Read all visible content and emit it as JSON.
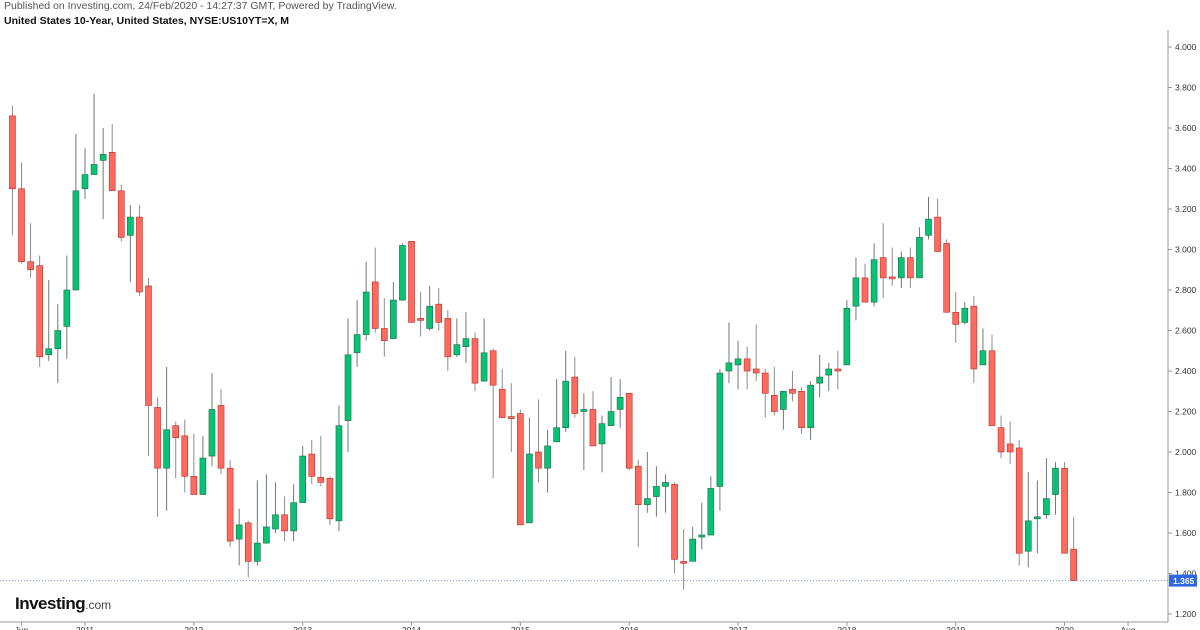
{
  "header": {
    "published": "Published on Investing.com, 24/Feb/2020 - 14:27:37 GMT, Powered by TradingView.",
    "title": "United States 10-Year, United States, NYSE:US10YT=X, M"
  },
  "logo": {
    "brand": "Investing",
    "suffix": ".com"
  },
  "chart_data": {
    "type": "candlestick",
    "title": "United States 10-Year, United States, NYSE:US10YT=X, M",
    "interval": "monthly",
    "x_tick_labels": [
      {
        "label": "Jun",
        "date": "2010-06"
      },
      {
        "label": "2011",
        "date": "2011-01"
      },
      {
        "label": "2012",
        "date": "2012-01"
      },
      {
        "label": "2013",
        "date": "2013-01"
      },
      {
        "label": "2014",
        "date": "2014-01"
      },
      {
        "label": "2015",
        "date": "2015-01"
      },
      {
        "label": "2016",
        "date": "2016-01"
      },
      {
        "label": "2017",
        "date": "2017-01"
      },
      {
        "label": "2018",
        "date": "2018-01"
      },
      {
        "label": "2019",
        "date": "2019-01"
      },
      {
        "label": "2020",
        "date": "2020-01"
      },
      {
        "label": "Aug",
        "date": "2020-08"
      }
    ],
    "y_tick_labels": [
      "1.200",
      "1.400",
      "1.600",
      "1.800",
      "2.000",
      "2.200",
      "2.400",
      "2.600",
      "2.800",
      "3.000",
      "3.200",
      "3.400",
      "3.600",
      "3.800",
      "4.000"
    ],
    "ylim": [
      1.2,
      4.0
    ],
    "y_axis_side": "right",
    "last_price": {
      "value": 1.365,
      "label": "1.365"
    },
    "colors": {
      "up": "#0ac276",
      "down": "#ff6a5f",
      "last_price": "#2f67e0",
      "wick": "#8a8f8c"
    },
    "columns": [
      "date",
      "open",
      "high",
      "low",
      "close"
    ],
    "rows": [
      [
        "2010-05",
        3.66,
        3.71,
        3.07,
        3.3
      ],
      [
        "2010-06",
        3.3,
        3.43,
        2.93,
        2.94
      ],
      [
        "2010-07",
        2.94,
        3.13,
        2.86,
        2.9
      ],
      [
        "2010-08",
        2.92,
        2.97,
        2.42,
        2.47
      ],
      [
        "2010-09",
        2.48,
        2.85,
        2.45,
        2.51
      ],
      [
        "2010-10",
        2.51,
        2.73,
        2.34,
        2.6
      ],
      [
        "2010-11",
        2.62,
        2.97,
        2.46,
        2.8
      ],
      [
        "2010-12",
        2.8,
        3.57,
        2.8,
        3.29
      ],
      [
        "2011-01",
        3.3,
        3.5,
        3.25,
        3.37
      ],
      [
        "2011-02",
        3.37,
        3.77,
        3.37,
        3.42
      ],
      [
        "2011-03",
        3.44,
        3.6,
        3.15,
        3.47
      ],
      [
        "2011-04",
        3.48,
        3.62,
        3.29,
        3.29
      ],
      [
        "2011-05",
        3.29,
        3.32,
        3.04,
        3.06
      ],
      [
        "2011-06",
        3.07,
        3.22,
        2.84,
        3.16
      ],
      [
        "2011-07",
        3.16,
        3.22,
        2.77,
        2.79
      ],
      [
        "2011-08",
        2.82,
        2.86,
        1.98,
        2.23
      ],
      [
        "2011-09",
        2.22,
        2.27,
        1.68,
        1.92
      ],
      [
        "2011-10",
        1.92,
        2.42,
        1.71,
        2.11
      ],
      [
        "2011-11",
        2.13,
        2.15,
        1.87,
        2.07
      ],
      [
        "2011-12",
        2.08,
        2.16,
        1.8,
        1.88
      ],
      [
        "2012-01",
        1.88,
        2.09,
        1.79,
        1.79
      ],
      [
        "2012-02",
        1.79,
        2.08,
        1.79,
        1.97
      ],
      [
        "2012-03",
        1.98,
        2.39,
        1.93,
        2.21
      ],
      [
        "2012-04",
        2.23,
        2.31,
        1.89,
        1.92
      ],
      [
        "2012-05",
        1.92,
        1.96,
        1.53,
        1.56
      ],
      [
        "2012-06",
        1.57,
        1.72,
        1.44,
        1.64
      ],
      [
        "2012-07",
        1.65,
        1.66,
        1.38,
        1.46
      ],
      [
        "2012-08",
        1.46,
        1.86,
        1.44,
        1.55
      ],
      [
        "2012-09",
        1.55,
        1.89,
        1.55,
        1.63
      ],
      [
        "2012-10",
        1.62,
        1.85,
        1.6,
        1.69
      ],
      [
        "2012-11",
        1.69,
        1.78,
        1.56,
        1.61
      ],
      [
        "2012-12",
        1.61,
        1.84,
        1.56,
        1.75
      ],
      [
        "2013-01",
        1.75,
        2.03,
        1.75,
        1.98
      ],
      [
        "2013-02",
        1.99,
        2.06,
        1.84,
        1.88
      ],
      [
        "2013-03",
        1.875,
        2.08,
        1.83,
        1.85
      ],
      [
        "2013-04",
        1.87,
        1.88,
        1.64,
        1.67
      ],
      [
        "2013-05",
        1.66,
        2.23,
        1.61,
        2.13
      ],
      [
        "2013-06",
        2.155,
        2.66,
        2.0,
        2.48
      ],
      [
        "2013-07",
        2.49,
        2.75,
        2.42,
        2.58
      ],
      [
        "2013-08",
        2.58,
        2.94,
        2.55,
        2.79
      ],
      [
        "2013-09",
        2.84,
        3.01,
        2.59,
        2.61
      ],
      [
        "2013-10",
        2.61,
        2.76,
        2.47,
        2.55
      ],
      [
        "2013-11",
        2.56,
        2.84,
        2.56,
        2.75
      ],
      [
        "2013-12",
        2.75,
        3.03,
        2.75,
        3.02
      ],
      [
        "2014-01",
        3.04,
        3.04,
        2.64,
        2.64
      ],
      [
        "2014-02",
        2.66,
        2.79,
        2.57,
        2.65
      ],
      [
        "2014-03",
        2.61,
        2.82,
        2.6,
        2.72
      ],
      [
        "2014-04",
        2.73,
        2.81,
        2.6,
        2.64
      ],
      [
        "2014-05",
        2.66,
        2.7,
        2.4,
        2.47
      ],
      [
        "2014-06",
        2.48,
        2.66,
        2.47,
        2.53
      ],
      [
        "2014-07",
        2.52,
        2.69,
        2.44,
        2.56
      ],
      [
        "2014-08",
        2.56,
        2.59,
        2.3,
        2.34
      ],
      [
        "2014-09",
        2.35,
        2.66,
        2.35,
        2.49
      ],
      [
        "2014-10",
        2.5,
        2.51,
        1.87,
        2.33
      ],
      [
        "2014-11",
        2.31,
        2.41,
        2.17,
        2.17
      ],
      [
        "2014-12",
        2.175,
        2.34,
        2.0,
        2.165
      ],
      [
        "2015-01",
        2.19,
        2.21,
        1.64,
        1.64
      ],
      [
        "2015-02",
        1.65,
        2.17,
        1.65,
        1.99
      ],
      [
        "2015-03",
        2.0,
        2.26,
        1.85,
        1.92
      ],
      [
        "2015-04",
        1.92,
        2.11,
        1.8,
        2.03
      ],
      [
        "2015-05",
        2.05,
        2.36,
        2.05,
        2.12
      ],
      [
        "2015-06",
        2.12,
        2.5,
        2.1,
        2.35
      ],
      [
        "2015-07",
        2.37,
        2.47,
        2.17,
        2.19
      ],
      [
        "2015-08",
        2.2,
        2.29,
        1.91,
        2.21
      ],
      [
        "2015-09",
        2.21,
        2.3,
        2.03,
        2.03
      ],
      [
        "2015-10",
        2.04,
        2.18,
        1.9,
        2.14
      ],
      [
        "2015-11",
        2.13,
        2.37,
        2.13,
        2.2
      ],
      [
        "2015-12",
        2.21,
        2.36,
        2.12,
        2.27
      ],
      [
        "2016-01",
        2.29,
        2.29,
        1.91,
        1.92
      ],
      [
        "2016-02",
        1.93,
        1.96,
        1.53,
        1.74
      ],
      [
        "2016-03",
        1.74,
        2.0,
        1.7,
        1.77
      ],
      [
        "2016-04",
        1.78,
        1.93,
        1.68,
        1.83
      ],
      [
        "2016-05",
        1.83,
        1.89,
        1.7,
        1.85
      ],
      [
        "2016-06",
        1.84,
        1.85,
        1.4,
        1.47
      ],
      [
        "2016-07",
        1.46,
        1.62,
        1.32,
        1.45
      ],
      [
        "2016-08",
        1.46,
        1.63,
        1.46,
        1.57
      ],
      [
        "2016-09",
        1.58,
        1.75,
        1.52,
        1.59
      ],
      [
        "2016-10",
        1.59,
        1.88,
        1.59,
        1.82
      ],
      [
        "2016-11",
        1.83,
        2.41,
        1.71,
        2.39
      ],
      [
        "2016-12",
        2.4,
        2.64,
        2.34,
        2.44
      ],
      [
        "2017-01",
        2.43,
        2.55,
        2.31,
        2.46
      ],
      [
        "2017-02",
        2.46,
        2.52,
        2.31,
        2.4
      ],
      [
        "2017-03",
        2.41,
        2.63,
        2.35,
        2.39
      ],
      [
        "2017-04",
        2.39,
        2.41,
        2.17,
        2.29
      ],
      [
        "2017-05",
        2.28,
        2.42,
        2.18,
        2.2
      ],
      [
        "2017-06",
        2.21,
        2.3,
        2.11,
        2.3
      ],
      [
        "2017-07",
        2.31,
        2.4,
        2.25,
        2.29
      ],
      [
        "2017-08",
        2.3,
        2.32,
        2.09,
        2.12
      ],
      [
        "2017-09",
        2.12,
        2.35,
        2.06,
        2.33
      ],
      [
        "2017-10",
        2.34,
        2.48,
        2.27,
        2.37
      ],
      [
        "2017-11",
        2.38,
        2.44,
        2.3,
        2.41
      ],
      [
        "2017-12",
        2.41,
        2.5,
        2.31,
        2.4
      ],
      [
        "2018-01",
        2.43,
        2.75,
        2.43,
        2.71
      ],
      [
        "2018-02",
        2.72,
        2.96,
        2.65,
        2.86
      ],
      [
        "2018-03",
        2.86,
        2.93,
        2.74,
        2.74
      ],
      [
        "2018-04",
        2.74,
        3.03,
        2.72,
        2.95
      ],
      [
        "2018-05",
        2.96,
        3.13,
        2.76,
        2.86
      ],
      [
        "2018-06",
        2.865,
        3.01,
        2.82,
        2.855
      ],
      [
        "2018-07",
        2.86,
        2.99,
        2.81,
        2.96
      ],
      [
        "2018-08",
        2.96,
        3.01,
        2.81,
        2.86
      ],
      [
        "2018-09",
        2.86,
        3.11,
        2.86,
        3.06
      ],
      [
        "2018-10",
        3.07,
        3.26,
        3.05,
        3.15
      ],
      [
        "2018-11",
        3.16,
        3.25,
        2.99,
        2.99
      ],
      [
        "2018-12",
        3.03,
        3.05,
        2.69,
        2.69
      ],
      [
        "2019-01",
        2.69,
        2.79,
        2.54,
        2.63
      ],
      [
        "2019-02",
        2.64,
        2.74,
        2.63,
        2.71
      ],
      [
        "2019-03",
        2.72,
        2.77,
        2.34,
        2.41
      ],
      [
        "2019-04",
        2.43,
        2.61,
        2.43,
        2.5
      ],
      [
        "2019-05",
        2.5,
        2.58,
        2.13,
        2.13
      ],
      [
        "2019-06",
        2.12,
        2.18,
        1.97,
        2.0
      ],
      [
        "2019-07",
        2.04,
        2.15,
        1.94,
        2.0
      ],
      [
        "2019-08",
        2.02,
        2.06,
        1.44,
        1.5
      ],
      [
        "2019-09",
        1.51,
        1.9,
        1.43,
        1.66
      ],
      [
        "2019-10",
        1.67,
        1.86,
        1.5,
        1.68
      ],
      [
        "2019-11",
        1.69,
        1.97,
        1.67,
        1.77
      ],
      [
        "2019-12",
        1.79,
        1.95,
        1.69,
        1.92
      ],
      [
        "2020-01",
        1.92,
        1.95,
        1.5,
        1.5
      ],
      [
        "2020-02",
        1.52,
        1.68,
        1.365,
        1.365
      ]
    ]
  }
}
